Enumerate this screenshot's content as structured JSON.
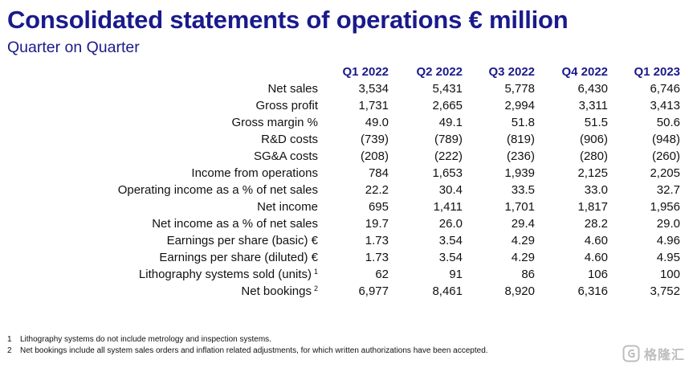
{
  "title": "Consolidated statements of operations € million",
  "subtitle": "Quarter on Quarter",
  "columns": [
    "Q1 2022",
    "Q2 2022",
    "Q3 2022",
    "Q4 2022",
    "Q1 2023"
  ],
  "rows": [
    {
      "label": "Net sales",
      "sup": "",
      "values": [
        "3,534",
        "5,431",
        "5,778",
        "6,430",
        "6,746"
      ]
    },
    {
      "label": "Gross profit",
      "sup": "",
      "values": [
        "1,731",
        "2,665",
        "2,994",
        "3,311",
        "3,413"
      ]
    },
    {
      "label": "Gross margin %",
      "sup": "",
      "values": [
        "49.0",
        "49.1",
        "51.8",
        "51.5",
        "50.6"
      ]
    },
    {
      "label": "R&D costs",
      "sup": "",
      "values": [
        "(739)",
        "(789)",
        "(819)",
        "(906)",
        "(948)"
      ]
    },
    {
      "label": "SG&A costs",
      "sup": "",
      "values": [
        "(208)",
        "(222)",
        "(236)",
        "(280)",
        "(260)"
      ]
    },
    {
      "label": "Income from operations",
      "sup": "",
      "values": [
        "784",
        "1,653",
        "1,939",
        "2,125",
        "2,205"
      ]
    },
    {
      "label": "Operating income as a % of net sales",
      "sup": "",
      "values": [
        "22.2",
        "30.4",
        "33.5",
        "33.0",
        "32.7"
      ]
    },
    {
      "label": "Net income",
      "sup": "",
      "values": [
        "695",
        "1,411",
        "1,701",
        "1,817",
        "1,956"
      ]
    },
    {
      "label": "Net income as a % of net sales",
      "sup": "",
      "values": [
        "19.7",
        "26.0",
        "29.4",
        "28.2",
        "29.0"
      ]
    },
    {
      "label": "Earnings per share (basic) €",
      "sup": "",
      "values": [
        "1.73",
        "3.54",
        "4.29",
        "4.60",
        "4.96"
      ]
    },
    {
      "label": "Earnings per share (diluted) €",
      "sup": "",
      "values": [
        "1.73",
        "3.54",
        "4.29",
        "4.60",
        "4.95"
      ]
    },
    {
      "label": "Lithography systems sold (units)",
      "sup": "1",
      "values": [
        "62",
        "91",
        "86",
        "106",
        "100"
      ]
    },
    {
      "label": "Net bookings",
      "sup": "2",
      "values": [
        "6,977",
        "8,461",
        "8,920",
        "6,316",
        "3,752"
      ]
    }
  ],
  "footnotes": [
    {
      "num": "1",
      "text": "Lithography systems do not include metrology and inspection systems."
    },
    {
      "num": "2",
      "text": "Net bookings include all system sales orders and inflation related adjustments, for which written authorizations have been accepted."
    }
  ],
  "watermark": {
    "text": "格隆汇",
    "icon": "gelonghui-logo-icon"
  },
  "colors": {
    "heading": "#1a1a8c",
    "text": "#111111",
    "background": "#ffffff"
  }
}
